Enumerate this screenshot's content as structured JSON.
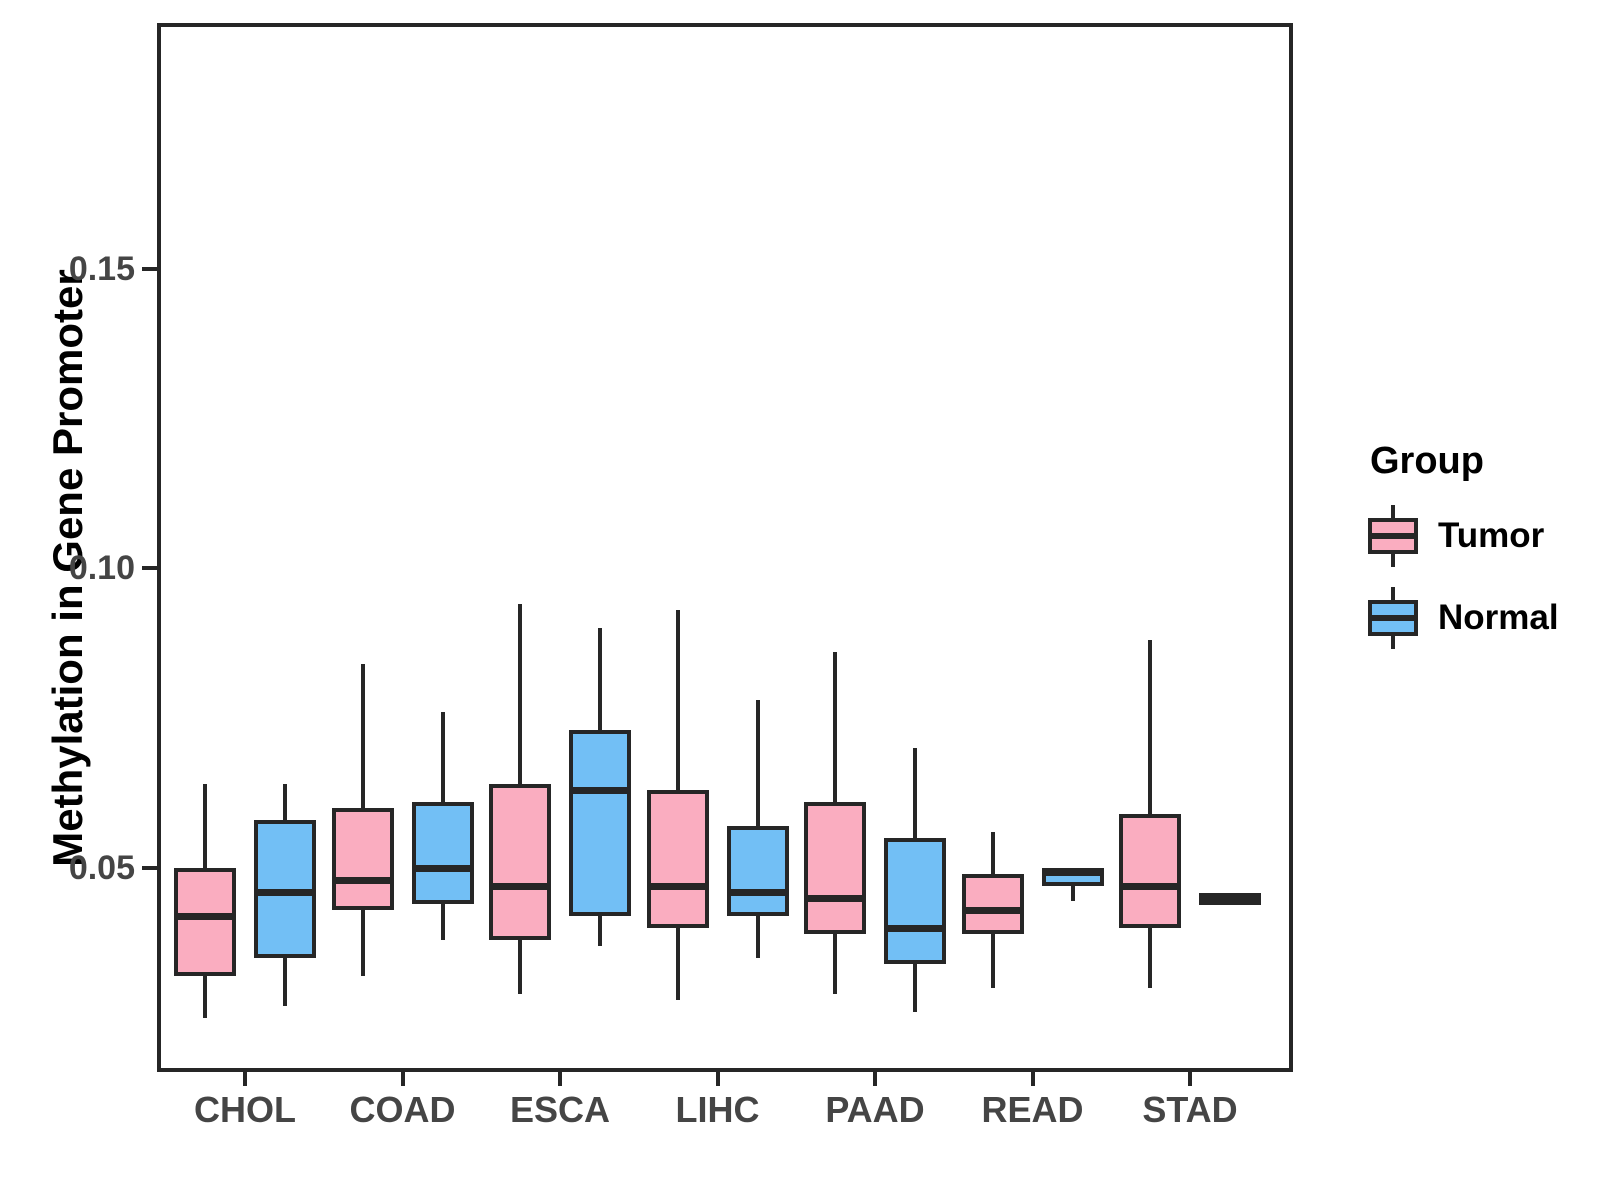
{
  "figure": {
    "background": "#ffffff",
    "panel_border_color": "#262626",
    "stroke_color": "#262626",
    "axis_text_color": "#454545",
    "title_text_color": "#000000"
  },
  "y_axis": {
    "title": "Methylation in Gene Promoter",
    "tick_labels": [
      "0.05",
      "0.10",
      "0.15"
    ],
    "tick_values": [
      0.05,
      0.1,
      0.15
    ]
  },
  "x_axis": {
    "categories": [
      "CHOL",
      "COAD",
      "ESCA",
      "LIHC",
      "PAAD",
      "READ",
      "STAD"
    ]
  },
  "legend": {
    "title": "Group",
    "entries": [
      {
        "label": "Tumor",
        "color": "#FAADC0"
      },
      {
        "label": "Normal",
        "color": "#72BFF5"
      }
    ],
    "position": "right"
  },
  "chart_data": {
    "type": "boxplot",
    "title": "",
    "xlabel": "",
    "ylabel": "Methylation in Gene Promoter",
    "ylim": [
      0.016,
      0.191
    ],
    "grid": false,
    "legend_position": "right",
    "categories": [
      "CHOL",
      "COAD",
      "ESCA",
      "LIHC",
      "PAAD",
      "READ",
      "STAD"
    ],
    "series": [
      {
        "name": "Tumor",
        "color": "#FAADC0",
        "boxes": [
          {
            "category": "CHOL",
            "min": 0.025,
            "q1": 0.032,
            "median": 0.042,
            "q3": 0.05,
            "max": 0.064
          },
          {
            "category": "COAD",
            "min": 0.032,
            "q1": 0.043,
            "median": 0.048,
            "q3": 0.06,
            "max": 0.084
          },
          {
            "category": "ESCA",
            "min": 0.029,
            "q1": 0.038,
            "median": 0.047,
            "q3": 0.064,
            "max": 0.094
          },
          {
            "category": "LIHC",
            "min": 0.028,
            "q1": 0.04,
            "median": 0.047,
            "q3": 0.063,
            "max": 0.093
          },
          {
            "category": "PAAD",
            "min": 0.029,
            "q1": 0.039,
            "median": 0.045,
            "q3": 0.061,
            "max": 0.086
          },
          {
            "category": "READ",
            "min": 0.03,
            "q1": 0.039,
            "median": 0.043,
            "q3": 0.049,
            "max": 0.056
          },
          {
            "category": "STAD",
            "min": 0.03,
            "q1": 0.04,
            "median": 0.047,
            "q3": 0.059,
            "max": 0.088
          }
        ]
      },
      {
        "name": "Normal",
        "color": "#72BFF5",
        "boxes": [
          {
            "category": "CHOL",
            "min": 0.027,
            "q1": 0.035,
            "median": 0.046,
            "q3": 0.058,
            "max": 0.064
          },
          {
            "category": "COAD",
            "min": 0.038,
            "q1": 0.044,
            "median": 0.05,
            "q3": 0.061,
            "max": 0.076
          },
          {
            "category": "ESCA",
            "min": 0.037,
            "q1": 0.042,
            "median": 0.063,
            "q3": 0.073,
            "max": 0.09
          },
          {
            "category": "LIHC",
            "min": 0.035,
            "q1": 0.042,
            "median": 0.046,
            "q3": 0.057,
            "max": 0.078
          },
          {
            "category": "PAAD",
            "min": 0.026,
            "q1": 0.034,
            "median": 0.04,
            "q3": 0.055,
            "max": 0.07
          },
          {
            "category": "READ",
            "min": 0.0445,
            "q1": 0.047,
            "median": 0.0493,
            "q3": 0.05,
            "max": 0.05
          },
          {
            "category": "STAD",
            "min": 0.044,
            "q1": 0.0446,
            "median": 0.0449,
            "q3": 0.0452,
            "max": 0.0458
          }
        ]
      }
    ]
  }
}
